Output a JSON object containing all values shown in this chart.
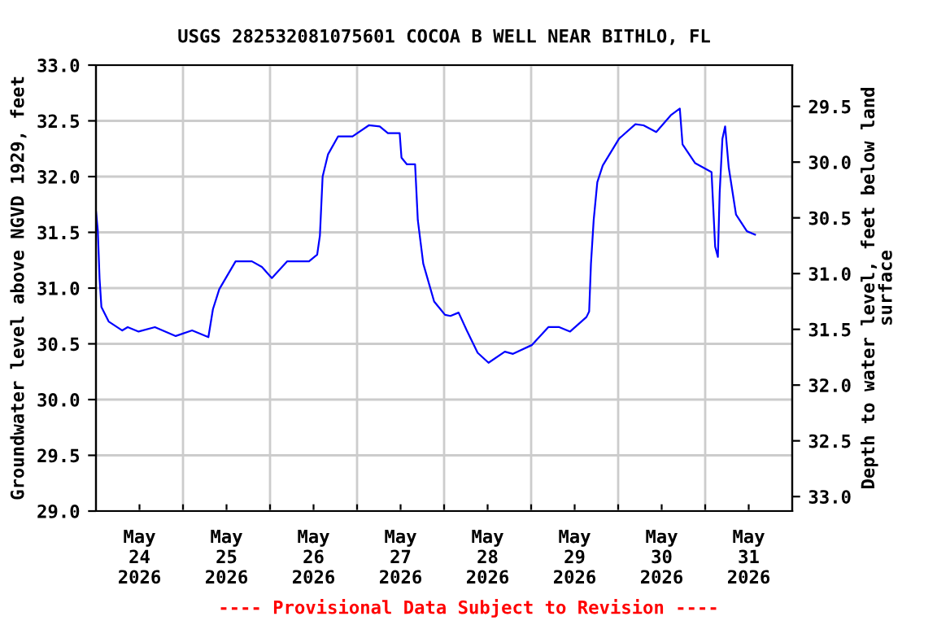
{
  "chart_data": {
    "type": "line",
    "title": "USGS 282532081075601 COCOA B WELL NEAR BITHLO, FL",
    "ylabel": "Groundwater level above NGVD 1929, feet",
    "y2label": "Depth to water level, feet below land\nsurface",
    "annotations": [
      "---- Provisional Data Subject to Revision ----"
    ],
    "x": [
      "2026-05-24T00:00",
      "2026-05-24T00:30",
      "2026-05-24T01:00",
      "2026-05-24T01:30",
      "2026-05-24T03:30",
      "2026-05-24T07:15",
      "2026-05-24T08:45",
      "2026-05-24T11:45",
      "2026-05-24T16:15",
      "2026-05-24T22:00",
      "2026-05-25T02:30",
      "2026-05-25T07:00",
      "2026-05-25T08:15",
      "2026-05-25T10:00",
      "2026-05-25T14:30",
      "2026-05-25T19:00",
      "2026-05-25T21:45",
      "2026-05-26T00:30",
      "2026-05-26T04:45",
      "2026-05-26T10:45",
      "2026-05-26T13:00",
      "2026-05-26T13:45",
      "2026-05-26T14:30",
      "2026-05-26T16:00",
      "2026-05-26T18:45",
      "2026-05-26T22:45",
      "2026-05-27T03:15",
      "2026-05-27T06:15",
      "2026-05-27T08:30",
      "2026-05-27T11:45",
      "2026-05-27T12:15",
      "2026-05-27T13:45",
      "2026-05-27T16:00",
      "2026-05-27T16:45",
      "2026-05-27T18:15",
      "2026-05-27T21:15",
      "2026-05-27T23:00",
      "2026-05-28T00:15",
      "2026-05-28T01:45",
      "2026-05-28T04:00",
      "2026-05-28T06:15",
      "2026-05-28T09:15",
      "2026-05-28T12:15",
      "2026-05-28T16:45",
      "2026-05-28T19:00",
      "2026-05-29T00:15",
      "2026-05-29T04:45",
      "2026-05-29T07:45",
      "2026-05-29T10:45",
      "2026-05-29T15:15",
      "2026-05-29T16:00",
      "2026-05-29T16:30",
      "2026-05-29T17:15",
      "2026-05-29T18:15",
      "2026-05-29T19:45",
      "2026-05-30T00:15",
      "2026-05-30T04:45",
      "2026-05-30T07:00",
      "2026-05-30T10:30",
      "2026-05-30T14:30",
      "2026-05-30T17:00",
      "2026-05-30T17:45",
      "2026-05-30T21:15",
      "2026-05-31T01:45",
      "2026-05-31T02:45",
      "2026-05-31T03:30",
      "2026-05-31T04:00",
      "2026-05-31T04:45",
      "2026-05-31T05:30",
      "2026-05-31T06:30",
      "2026-05-31T08:30",
      "2026-05-31T11:30",
      "2026-05-31T13:45"
    ],
    "series": [
      {
        "color": "#0000ff",
        "values": [
          31.69,
          31.52,
          31.08,
          30.83,
          30.7,
          30.62,
          30.65,
          30.61,
          30.65,
          30.57,
          30.62,
          30.56,
          30.81,
          30.99,
          31.24,
          31.24,
          31.19,
          31.09,
          31.24,
          31.24,
          31.3,
          31.47,
          32.0,
          32.2,
          32.36,
          32.36,
          32.46,
          32.45,
          32.39,
          32.39,
          32.17,
          32.11,
          32.11,
          31.61,
          31.22,
          30.88,
          30.81,
          30.76,
          30.75,
          30.78,
          30.62,
          30.42,
          30.33,
          30.43,
          30.41,
          30.49,
          30.65,
          30.65,
          30.61,
          30.74,
          30.79,
          31.22,
          31.61,
          31.95,
          32.1,
          32.34,
          32.47,
          32.46,
          32.4,
          32.55,
          32.61,
          32.29,
          32.12,
          32.04,
          31.37,
          31.28,
          31.86,
          32.34,
          32.45,
          32.08,
          31.66,
          31.51,
          31.48
        ]
      }
    ],
    "xlim": [
      "2026-05-24T00:00",
      "2026-06-01T00:00"
    ],
    "xticks": [
      {
        "value": "2026-05-24T12:00",
        "label": "May\n24\n2026"
      },
      {
        "value": "2026-05-25T00:00",
        "label": null
      },
      {
        "value": "2026-05-25T12:00",
        "label": "May\n25\n2026"
      },
      {
        "value": "2026-05-26T00:00",
        "label": null
      },
      {
        "value": "2026-05-26T12:00",
        "label": "May\n26\n2026"
      },
      {
        "value": "2026-05-27T00:00",
        "label": null
      },
      {
        "value": "2026-05-27T12:00",
        "label": "May\n27\n2026"
      },
      {
        "value": "2026-05-28T00:00",
        "label": null
      },
      {
        "value": "2026-05-28T12:00",
        "label": "May\n28\n2026"
      },
      {
        "value": "2026-05-29T00:00",
        "label": null
      },
      {
        "value": "2026-05-29T12:00",
        "label": "May\n29\n2026"
      },
      {
        "value": "2026-05-30T00:00",
        "label": null
      },
      {
        "value": "2026-05-30T12:00",
        "label": "May\n30\n2026"
      },
      {
        "value": "2026-05-31T00:00",
        "label": null
      },
      {
        "value": "2026-05-31T12:00",
        "label": "May\n31\n2026"
      }
    ],
    "ylim": [
      29.0,
      33.0
    ],
    "yticks": [
      {
        "value": 29.0,
        "label": "29.0"
      },
      {
        "value": 29.5,
        "label": "29.5"
      },
      {
        "value": 30.0,
        "label": "30.0"
      },
      {
        "value": 30.5,
        "label": "30.5"
      },
      {
        "value": 31.0,
        "label": "31.0"
      },
      {
        "value": 31.5,
        "label": "31.5"
      },
      {
        "value": 32.0,
        "label": "32.0"
      },
      {
        "value": 32.5,
        "label": "32.5"
      },
      {
        "value": 33.0,
        "label": "33.0"
      }
    ],
    "y2lim": [
      33.13,
      29.13
    ],
    "y2ticks": [
      {
        "value": 29.5,
        "label": "29.5"
      },
      {
        "value": 30.0,
        "label": "30.0"
      },
      {
        "value": 30.5,
        "label": "30.5"
      },
      {
        "value": 31.0,
        "label": "31.0"
      },
      {
        "value": 31.5,
        "label": "31.5"
      },
      {
        "value": 32.0,
        "label": "32.0"
      },
      {
        "value": 32.5,
        "label": "32.5"
      },
      {
        "value": 33.0,
        "label": "33.0"
      }
    ],
    "grid": true,
    "legend": false,
    "line_style": "solid",
    "marker": "none"
  }
}
